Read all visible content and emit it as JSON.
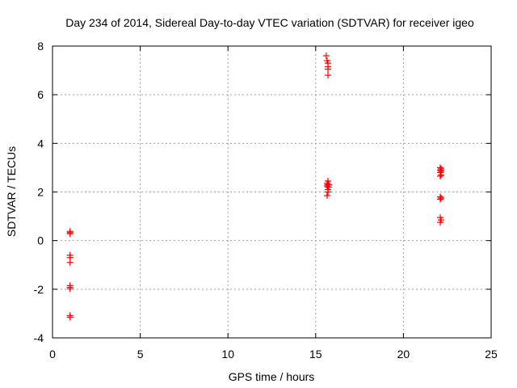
{
  "chart_data": {
    "type": "scatter",
    "title": "Day 234 of 2014, Sidereal Day-to-day VTEC variation (SDTVAR) for receiver igeo",
    "xlabel": "GPS time / hours",
    "ylabel": "SDTVAR / TECUs",
    "xlim": [
      0,
      25
    ],
    "ylim": [
      -4,
      8
    ],
    "xticks": [
      0,
      5,
      10,
      15,
      20,
      25
    ],
    "yticks": [
      -4,
      -2,
      0,
      2,
      4,
      6,
      8
    ],
    "grid": true,
    "marker": "plus",
    "color": "#ff0000",
    "series": [
      {
        "points": [
          [
            1.0,
            0.38
          ],
          [
            1.0,
            0.33
          ],
          [
            1.0,
            0.28
          ],
          [
            1.0,
            -0.6
          ],
          [
            1.0,
            -0.7
          ],
          [
            1.0,
            -0.9
          ],
          [
            1.0,
            -1.85
          ],
          [
            1.0,
            -1.92
          ],
          [
            1.0,
            -1.98
          ],
          [
            1.0,
            -3.08
          ],
          [
            1.0,
            -3.15
          ],
          [
            15.6,
            7.6
          ],
          [
            15.65,
            7.4
          ],
          [
            15.7,
            7.3
          ],
          [
            15.7,
            7.15
          ],
          [
            15.7,
            7.05
          ],
          [
            15.7,
            6.8
          ],
          [
            15.7,
            2.45
          ],
          [
            15.65,
            2.35
          ],
          [
            15.7,
            2.3
          ],
          [
            15.75,
            2.3
          ],
          [
            15.65,
            2.25
          ],
          [
            15.7,
            2.2
          ],
          [
            15.75,
            2.2
          ],
          [
            15.7,
            2.1
          ],
          [
            15.7,
            2.0
          ],
          [
            15.65,
            1.85
          ],
          [
            22.1,
            3.0
          ],
          [
            22.15,
            2.95
          ],
          [
            22.1,
            2.9
          ],
          [
            22.15,
            2.85
          ],
          [
            22.1,
            2.8
          ],
          [
            22.15,
            2.7
          ],
          [
            22.1,
            2.65
          ],
          [
            22.1,
            1.8
          ],
          [
            22.15,
            1.75
          ],
          [
            22.1,
            1.7
          ],
          [
            22.1,
            0.95
          ],
          [
            22.15,
            0.85
          ],
          [
            22.1,
            0.75
          ]
        ]
      }
    ]
  }
}
